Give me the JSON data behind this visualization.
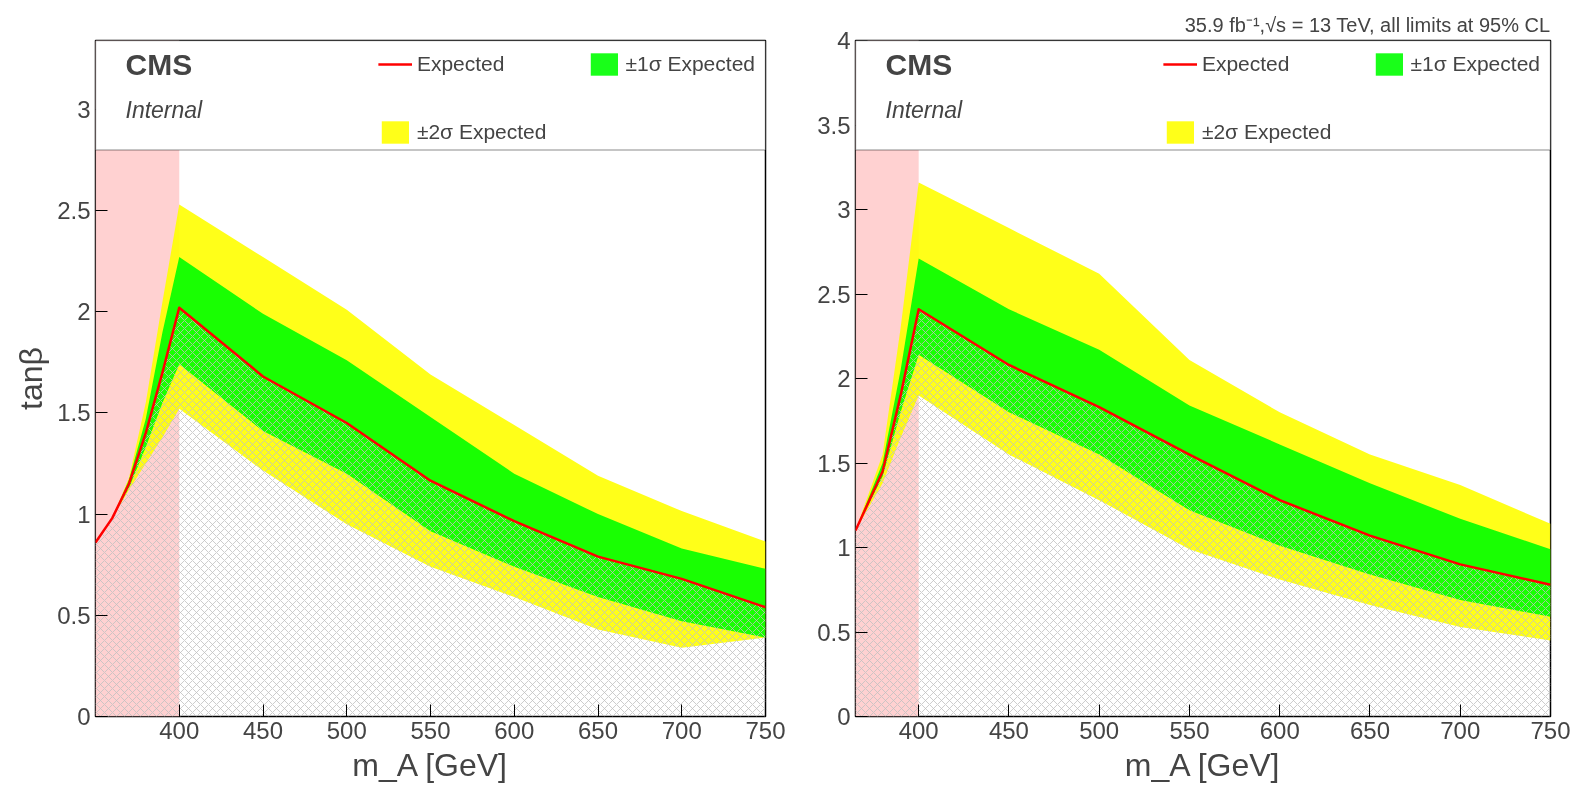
{
  "chart_data": [
    {
      "type": "line",
      "xlabel": "m_A [GeV]",
      "ylabel": "tanβ",
      "xlim": [
        350,
        750
      ],
      "ylim": [
        0,
        3.34
      ],
      "xticks": [
        400,
        450,
        500,
        550,
        600,
        650,
        700,
        750
      ],
      "yticks": [
        0,
        0.5,
        1,
        1.5,
        2,
        2.5,
        3
      ],
      "grid": false,
      "legend": "top right",
      "x": [
        350,
        360,
        370,
        380,
        390,
        400,
        450,
        500,
        550,
        600,
        650,
        700,
        750
      ],
      "annotations": [
        "CMS",
        "Internal"
      ],
      "bands": [
        {
          "axis": "x",
          "from": 350,
          "to": 400,
          "color": "#ffcccc"
        }
      ],
      "series": [
        {
          "name": "±2σ Expected",
          "color": "#ffff00",
          "values": [
            null,
            null,
            null,
            null,
            null,
            null,
            null,
            null,
            null,
            null,
            null,
            null,
            null
          ],
          "lower": [
            0.86,
            0.98,
            1.12,
            1.25,
            1.38,
            1.52,
            1.215,
            0.95,
            0.74,
            0.59,
            0.43,
            0.34,
            0.39
          ],
          "upper": [
            0.86,
            0.98,
            1.18,
            1.55,
            2.05,
            2.53,
            2.27,
            2.01,
            1.69,
            1.44,
            1.19,
            1.015,
            0.865
          ]
        },
        {
          "name": "±1σ Expected",
          "color": "#00ff00",
          "values": [
            null,
            null,
            null,
            null,
            null,
            null,
            null,
            null,
            null,
            null,
            null,
            null,
            null
          ],
          "lower": [
            0.86,
            0.98,
            1.13,
            1.33,
            1.55,
            1.74,
            1.41,
            1.2,
            0.915,
            0.74,
            0.59,
            0.47,
            0.39
          ],
          "upper": [
            0.86,
            0.98,
            1.17,
            1.47,
            1.9,
            2.27,
            1.99,
            1.76,
            1.48,
            1.2,
            1.0,
            0.83,
            0.73
          ]
        },
        {
          "name": "Expected",
          "type": "area",
          "color": "#ff0000",
          "values": [
            0.86,
            0.98,
            1.15,
            1.4,
            1.7,
            2.02,
            1.68,
            1.45,
            1.165,
            0.965,
            0.79,
            0.68,
            0.54
          ]
        }
      ]
    },
    {
      "type": "line",
      "title": "35.9 fb⁻¹,√s = 13 TeV, all limits at 95% CL",
      "xlabel": "m_A [GeV]",
      "xlim": [
        365,
        750
      ],
      "ylim": [
        0,
        4
      ],
      "xticks": [
        400,
        450,
        500,
        550,
        600,
        650,
        700,
        750
      ],
      "yticks": [
        0,
        0.5,
        1,
        1.5,
        2,
        2.5,
        3,
        3.5,
        4
      ],
      "grid": false,
      "legend": "top right",
      "x": [
        365,
        380,
        390,
        400,
        450,
        500,
        550,
        600,
        650,
        700,
        750
      ],
      "annotations": [
        "CMS",
        "Internal"
      ],
      "bands": [
        {
          "axis": "x",
          "from": 365,
          "to": 400,
          "color": "#ffcccc"
        }
      ],
      "series": [
        {
          "name": "±2σ Expected",
          "color": "#ffff00",
          "values": [
            null,
            null,
            null,
            null,
            null,
            null,
            null,
            null,
            null,
            null,
            null
          ],
          "lower": [
            1.1,
            1.38,
            1.65,
            1.9,
            1.55,
            1.28,
            0.99,
            0.81,
            0.66,
            0.53,
            0.45
          ],
          "upper": [
            1.1,
            1.55,
            2.3,
            3.16,
            2.89,
            2.62,
            2.11,
            1.8,
            1.55,
            1.37,
            1.14
          ]
        },
        {
          "name": "±1σ Expected",
          "color": "#00ff00",
          "values": [
            null,
            null,
            null,
            null,
            null,
            null,
            null,
            null,
            null,
            null,
            null
          ],
          "lower": [
            1.1,
            1.42,
            1.8,
            2.14,
            1.8,
            1.55,
            1.22,
            1.01,
            0.84,
            0.69,
            0.59
          ],
          "upper": [
            1.1,
            1.5,
            2.05,
            2.71,
            2.41,
            2.17,
            1.84,
            1.61,
            1.38,
            1.17,
            0.99
          ]
        },
        {
          "name": "Expected",
          "type": "area",
          "color": "#ff0000",
          "values": [
            1.1,
            1.45,
            1.9,
            2.41,
            2.08,
            1.83,
            1.55,
            1.28,
            1.07,
            0.9,
            0.78
          ]
        }
      ]
    }
  ]
}
